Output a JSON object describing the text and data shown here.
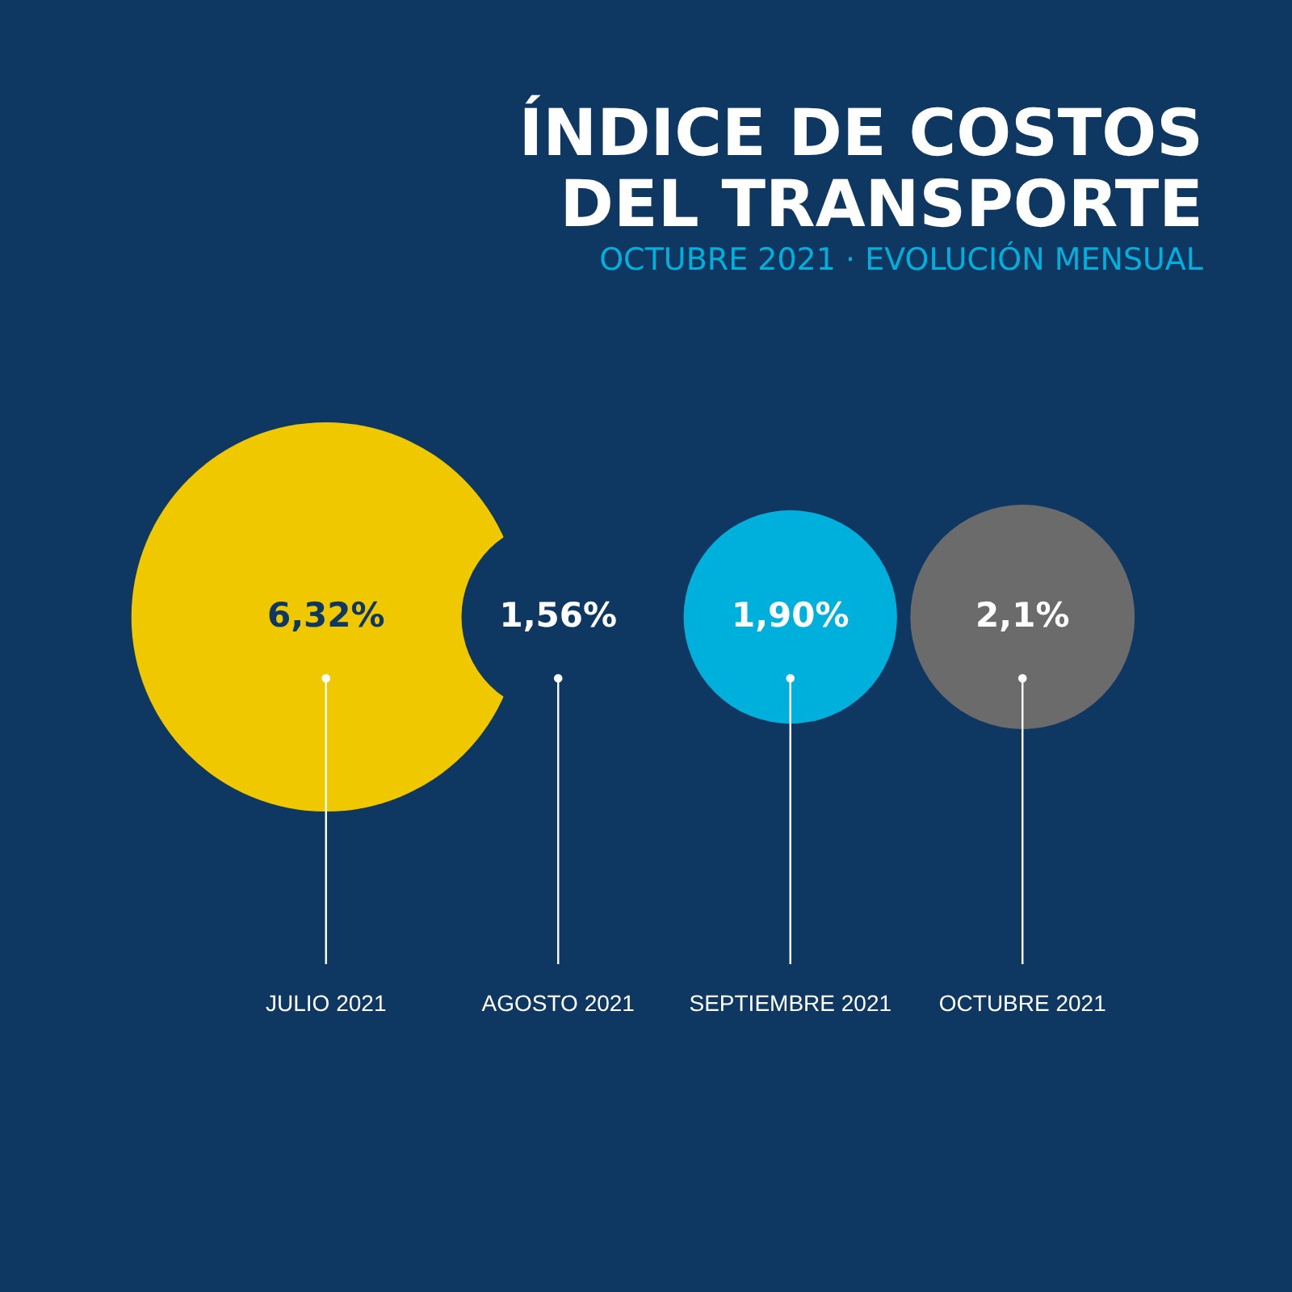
{
  "chart_data": {
    "type": "other",
    "title": "ÍNDICE DE COSTOS\nDEL TRANSPORTE",
    "subtitle": "OCTUBRE 2021 · EVOLUCIÓN MENSUAL",
    "categories": [
      "JULIO 2021",
      "AGOSTO 2021",
      "SEPTIEMBRE 2021",
      "OCTUBRE 2021"
    ],
    "values": [
      6.32,
      1.56,
      1.9,
      2.1
    ],
    "value_labels": [
      "6,32%",
      "1,56%",
      "1,90%",
      "2,1%"
    ],
    "colors": [
      "#f0c800",
      "#0e3761",
      "#00b0dc",
      "#6b6b6b"
    ]
  }
}
